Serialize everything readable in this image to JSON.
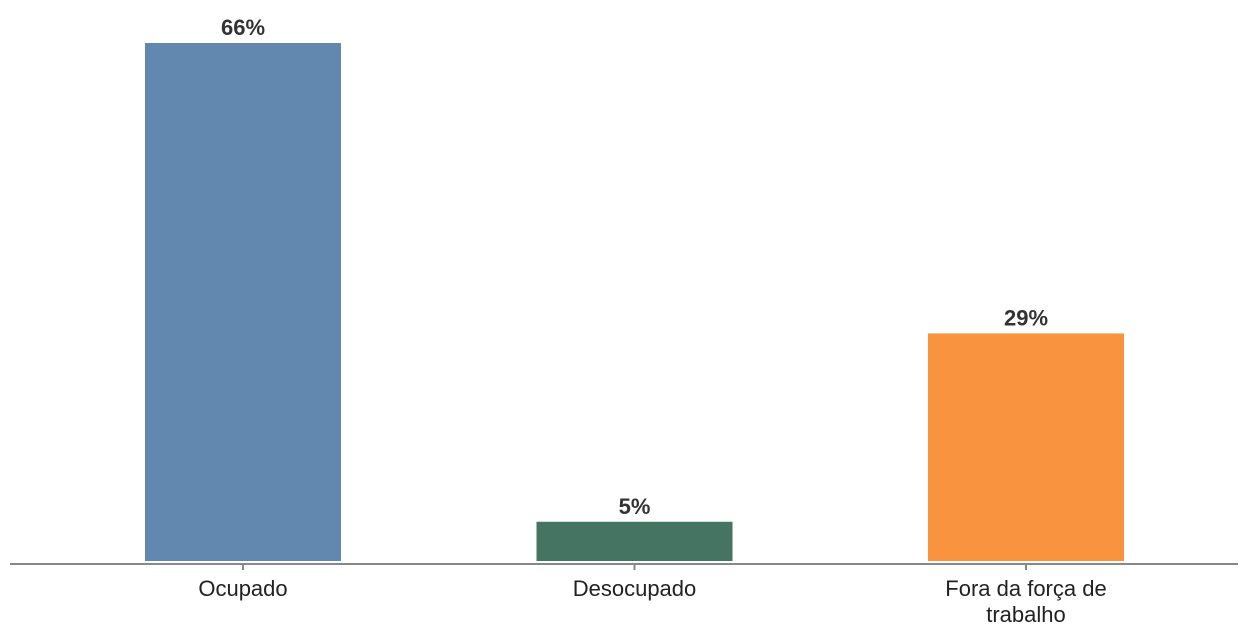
{
  "chart_data": {
    "type": "bar",
    "categories": [
      [
        "Ocupado"
      ],
      [
        "Desocupado"
      ],
      [
        "Fora da força de",
        "trabalho"
      ]
    ],
    "values": [
      66,
      5,
      29
    ],
    "value_labels": [
      "66%",
      "5%",
      "29%"
    ],
    "colors": [
      "#6388B0",
      "#457562",
      "#FA933F"
    ],
    "axis_color": "#888888",
    "ylim": [
      0,
      66
    ],
    "grid": false,
    "legend": "none",
    "title": "",
    "xlabel": "",
    "ylabel": ""
  }
}
